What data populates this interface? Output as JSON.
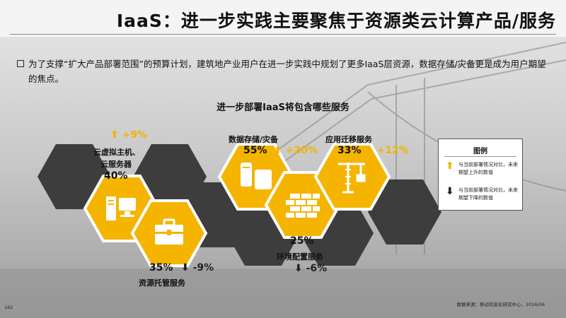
{
  "page": {
    "title": "IaaS：进一步实践主要聚焦于资源类云计算产品/服务",
    "description": "为了支撑“扩大产品部署范围”的预算计划，建筑地产业用户在进一步实践中规划了更多IaaS层资源，数据存储/灾备更是成为用户期望的焦点。",
    "subtitle": "进一步部署IaaS将包含哪些服务",
    "source": "数据来源：移动信息化研究中心，2016/06",
    "page_number": "162"
  },
  "services": [
    {
      "name_line1": "云虚拟主机、",
      "name_line2": "云服务器",
      "percent": "40%",
      "change": "+9%",
      "direction": "up",
      "icon": "server-computer-icon"
    },
    {
      "name": "资源托管服务",
      "percent": "35%",
      "change": "-9%",
      "direction": "down",
      "icon": "briefcase-icon"
    },
    {
      "name": "数据存储/灾备",
      "percent": "55%",
      "change": "+20%",
      "direction": "up",
      "icon": "database-storage-icon"
    },
    {
      "name": "环境配置服务",
      "percent": "25%",
      "change": "-6%",
      "direction": "down",
      "icon": "brick-wall-icon"
    },
    {
      "name": "应用迁移服务",
      "percent": "33%",
      "change": "+12%",
      "direction": "up",
      "icon": "crane-icon"
    }
  ],
  "legend": {
    "title": "图例",
    "up_text": "与当前部署情况对比，未来期望上升的数值",
    "down_text": "与当前部署情况对比，未来期望下降的数值",
    "up_color": "#f0b400",
    "down_color": "#222222"
  },
  "colors": {
    "yellow": "#f5b400",
    "dark": "#3d3d3d",
    "white": "#ffffff"
  }
}
